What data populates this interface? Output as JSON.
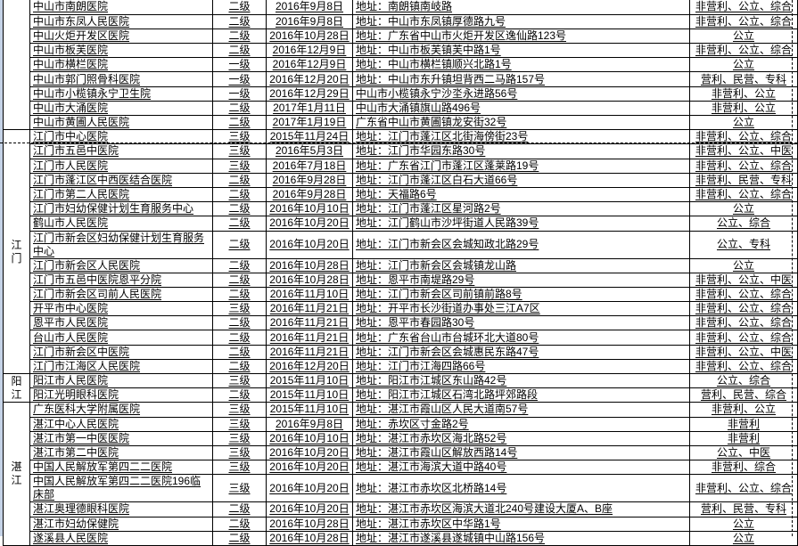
{
  "colors": {
    "grid_border": "#000000",
    "page_break_line": "#000000",
    "left_margin_strip": "#c5d3e7",
    "text": "#000000",
    "background": "#ffffff"
  },
  "address_prefix": "地址：",
  "sections": [
    {
      "city": "",
      "rows": [
        {
          "name": "中山市南朗医院",
          "level": "二级",
          "date": "2016年9月8日",
          "address": "地址：南朗镇南岐路",
          "type": "非营利、公立、综合"
        },
        {
          "name": "中山市东凤人民医院",
          "level": "二级",
          "date": "2016年9月8日",
          "address": "地址：中山市东凤镇厚德路九号",
          "type": "非营利、公立、综合"
        },
        {
          "name": "中山火炬开发区医院",
          "level": "二级",
          "date": "2016年10月28日",
          "address": "地址：广东省中山市火炬开发区逸仙路123号",
          "type": "公立"
        },
        {
          "name": "中山市板芙医院",
          "level": "二级",
          "date": "2016年12月9日",
          "address": "地址：中山市板芙镇芙中路1号",
          "type": "非营利、公立、综合"
        },
        {
          "name": "中山市横栏医院",
          "level": "一级",
          "date": "2016年12月9日",
          "address": "地址：中山市横栏镇顺兴北路1号",
          "type": "公立"
        },
        {
          "name": "中山市郭门照骨科医院",
          "level": "一级",
          "date": "2016年12月20日",
          "address": "地址：中山市东升镇坦背西二马路157号",
          "type": "营利、民营、专科"
        },
        {
          "name": "中山市小榄镇永宁卫生院",
          "level": "一级",
          "date": "2016年12月29日",
          "address": "中山市小榄镇永宁沙坔永进路56号",
          "type": "非营利、公立"
        },
        {
          "name": "中山市大涌医院",
          "level": "二级",
          "date": "2017年1月11日",
          "address": "中山市大涌镇旗山路496号",
          "type": "非营利、公立"
        },
        {
          "name": "中山市黄圃人民医院",
          "level": "二级",
          "date": "2017年1月19日",
          "address": "广东省中山市黄圃镇龙安街32号",
          "type": "公立"
        }
      ]
    },
    {
      "city": "江门",
      "rows": [
        {
          "name": "江门市中心医院",
          "level": "三级",
          "date": "2015年11月24日",
          "address": "地址：江门市蓬江区北街海傍街23号",
          "type": "非营利、公立、综合"
        },
        {
          "name": "江门市五邑中医院",
          "level": "三级",
          "date": "2016年5月3日",
          "address": "地址：江门市华园东路30号",
          "type": "非营利、公立、中医"
        },
        {
          "name": "江门市人民医院",
          "level": "三级",
          "date": "2016年7月18日",
          "address": "地址：广东省江门市蓬江区蓬莱路19号",
          "type": "非营利、公立、综合"
        },
        {
          "name": "江门市蓬江区中西医结合医院",
          "level": "二级",
          "date": "2016年9月28日",
          "address": "地址：江门市蓬江区白石大道66号",
          "type": "非营利、民营、专科"
        },
        {
          "name": "江门市第二人民医院",
          "level": "二级",
          "date": "2016年9月28日",
          "address": "地址：天福路6号",
          "type": "非营利、公立、综合"
        },
        {
          "name": "江门市妇幼保健计划生育服务中心",
          "level": "二级",
          "date": "2016年10月10日",
          "address": "地址：江门市蓬江区星河路2号",
          "type": "公立"
        },
        {
          "name": "鹤山市人民医院",
          "level": "二级",
          "date": "2016年10月20日",
          "address": "地址：江门鹤山市沙坪街道人民路39号",
          "type": "公立、综合"
        },
        {
          "name": "江门市新会区妇幼保健计划生育服务中心",
          "level": "二级",
          "date": "2016年10月20日",
          "address": "地址：江门市新会区会城知政北路29号",
          "type": "公立、专科"
        },
        {
          "name": "江门市新会区人民医院",
          "level": "二级",
          "date": "2016年10月28日",
          "address": "地址：江门市新会区会城镇龙山路",
          "type": "公立"
        },
        {
          "name": "江门市五邑中医院恩平分院",
          "level": "二级",
          "date": "2016年10月28日",
          "address": "地址：恩平市南堤路29号",
          "type": "非营利、公立、中医"
        },
        {
          "name": "江门市新会区司前人民医院",
          "level": "二级",
          "date": "2016年11月10日",
          "address": "地址：江门市新会区司前镇前路8号",
          "type": "非营利、公立、综合"
        },
        {
          "name": "开平市中心医院",
          "level": "三级",
          "date": "2016年11月21日",
          "address": "地址：开平市长沙街道办事处三江A7区",
          "type": "非营利、公立、综合"
        },
        {
          "name": "恩平市人民医院",
          "level": "二级",
          "date": "2016年11月21日",
          "address": "地址：恩平市春园路30号",
          "type": "非营利、公立、综合"
        },
        {
          "name": "台山市人民医院",
          "level": "二级",
          "date": "2016年11月21日",
          "address": "地址：广东省台山市台城环北大道80号",
          "type": "非营利、公立、综合"
        },
        {
          "name": "江门市新会区中医院",
          "level": "二级",
          "date": "2016年11月21日",
          "address": "地址：江门市新会区会城惠民东路47号",
          "type": "非营利、公立、中医"
        },
        {
          "name": "江门市江海区人民医院",
          "level": "二级",
          "date": "2016年12月20日",
          "address": "地址：江门市江海四路66号",
          "type": "非营利、公立、综合"
        }
      ]
    },
    {
      "city": "阳江",
      "rows": [
        {
          "name": "阳江市人民医院",
          "level": "三级",
          "date": "2015年11月10日",
          "address": "地址：阳江市江城区东山路42号",
          "type": "公立、综合"
        },
        {
          "name": "阳江光明眼科医院",
          "level": "二级",
          "date": "2015年11月10日",
          "address": "地址：阳江市江城区石湾北路坪郊路段",
          "type": "营利、民营、综合"
        }
      ]
    },
    {
      "city": "湛江",
      "rows": [
        {
          "name": "广东医科大学附属医院",
          "level": "三级",
          "date": "2015年11月10日",
          "address": "地址：湛江市霞山区人民大道南57号",
          "type": "非营利、公立"
        },
        {
          "name": "湛江中心人民医院",
          "level": "三级",
          "date": "2016年9月8日",
          "address": "地址：赤坎区寸金路2号",
          "type": "非营利"
        },
        {
          "name": "湛江市第一中医医院",
          "level": "三级",
          "date": "2016年10月10日",
          "address": "地址：湛江市赤坎区海北路52号",
          "type": "非营利"
        },
        {
          "name": "湛江市第二中医院",
          "level": "三级",
          "date": "2016年10月20日",
          "address": "地址：湛江市霞山区解放西路14号",
          "type": "公立、中医"
        },
        {
          "name": "中国人民解放军第四二二医院",
          "level": "三级",
          "date": "2016年10月20日",
          "address": "地址：湛江市海滨大道中路40号",
          "type": "非营利、综合"
        },
        {
          "name": "中国人民解放军第四二二医院196临床部",
          "level": "三级",
          "date": "2016年10月20日",
          "address": "地址：湛江市赤坎区北桥路14号",
          "type": "非营利、公立、综合"
        },
        {
          "name": "湛江奥理德眼科医院",
          "level": "二级",
          "date": "2016年10月20日",
          "address": "地址：湛江市赤坎区海滨大道北240号建设大厦A、B座",
          "type": "营利、民营、专科"
        },
        {
          "name": "湛江市妇幼保健院",
          "level": "二级",
          "date": "2016年10月28日",
          "address": "地址：湛江市赤坎区中华路1号",
          "type": "公立"
        },
        {
          "name": "遂溪县人民医院",
          "level": "二级",
          "date": "2016年10月28日",
          "address": "地址：湛江市遂溪县遂城镇中山路156号",
          "type": "公立"
        }
      ]
    }
  ]
}
